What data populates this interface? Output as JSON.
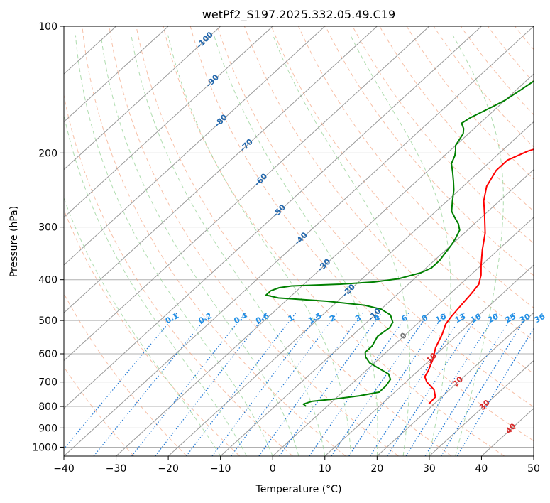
{
  "chart_data": {
    "type": "line",
    "title": "wetPf2_S197.2025.332.05.49.C19",
    "xlabel": "Temperature (°C)",
    "ylabel": "Pressure (hPa)",
    "xlim": [
      -40,
      50
    ],
    "ylim": [
      1050,
      100
    ],
    "x_ticks": [
      "−40",
      "−30",
      "−20",
      "−10",
      "0",
      "10",
      "20",
      "30",
      "40",
      "50"
    ],
    "x_tick_values": [
      -40,
      -30,
      -20,
      -10,
      0,
      10,
      20,
      30,
      40,
      50
    ],
    "y_ticks": [
      "100",
      "200",
      "300",
      "400",
      "500",
      "600",
      "700",
      "800",
      "900",
      "1000"
    ],
    "y_tick_values": [
      100,
      200,
      300,
      400,
      500,
      600,
      700,
      800,
      900,
      1000
    ],
    "isotherm_labels": [
      {
        "text": "-100",
        "T": -100,
        "p": 108
      },
      {
        "text": "-90",
        "T": -90,
        "p": 135
      },
      {
        "text": "-80",
        "T": -80,
        "p": 168
      },
      {
        "text": "-70",
        "T": -70,
        "p": 192
      },
      {
        "text": "-60",
        "T": -60,
        "p": 232
      },
      {
        "text": "-50",
        "T": -50,
        "p": 275
      },
      {
        "text": "-40",
        "T": -40,
        "p": 320
      },
      {
        "text": "-30",
        "T": -30,
        "p": 370
      },
      {
        "text": "-20",
        "T": -20,
        "p": 425
      },
      {
        "text": "-10",
        "T": -10,
        "p": 485
      },
      {
        "text": "0",
        "T": 0,
        "p": 545
      },
      {
        "text": "10",
        "T": 10,
        "p": 615
      },
      {
        "text": "20",
        "T": 20,
        "p": 700
      },
      {
        "text": "30",
        "T": 30,
        "p": 795
      },
      {
        "text": "40",
        "T": 40,
        "p": 905
      }
    ],
    "mixing_ratio_labels": [
      "0.1",
      "0.2",
      "0.4",
      "0.6",
      "1",
      "1.5",
      "2",
      "3",
      "4",
      "6",
      "8",
      "10",
      "13",
      "16",
      "20",
      "25",
      "30",
      "36"
    ],
    "mixing_ratio_values": [
      0.1,
      0.2,
      0.4,
      0.6,
      1,
      1.5,
      2,
      3,
      4,
      6,
      8,
      10,
      13,
      16,
      20,
      25,
      30,
      36
    ],
    "series": [
      {
        "name": "Temperature",
        "color": "#ff0000",
        "points": [
          [
            19,
            790
          ],
          [
            18.8,
            760
          ],
          [
            17,
            730
          ],
          [
            14,
            700
          ],
          [
            12.5,
            680
          ],
          [
            12,
            660
          ],
          [
            10.5,
            620
          ],
          [
            8.5,
            580
          ],
          [
            7,
            540
          ],
          [
            5.5,
            510
          ],
          [
            5,
            490
          ],
          [
            4.5,
            460
          ],
          [
            4,
            430
          ],
          [
            3.5,
            410
          ],
          [
            2,
            390
          ],
          [
            0,
            370
          ],
          [
            -3,
            340
          ],
          [
            -6,
            310
          ],
          [
            -10,
            280
          ],
          [
            -13,
            260
          ],
          [
            -15.5,
            240
          ],
          [
            -17,
            220
          ],
          [
            -17,
            208
          ],
          [
            -15,
            198
          ],
          [
            -12,
            190
          ],
          [
            -8.5,
            180
          ],
          [
            -7,
            175
          ],
          [
            -5,
            165
          ],
          [
            -3.5,
            155
          ],
          [
            -2,
            148
          ],
          [
            -1,
            140
          ],
          [
            -1,
            130
          ],
          [
            0,
            120
          ],
          [
            1,
            115
          ],
          [
            2.5,
            110
          ],
          [
            4,
            104
          ],
          [
            5,
            100
          ]
        ]
      },
      {
        "name": "Dewpoint",
        "color": "#008000",
        "points": [
          [
            -4,
            800
          ],
          [
            -5,
            790
          ],
          [
            -4,
            778
          ],
          [
            0,
            768
          ],
          [
            4,
            755
          ],
          [
            7,
            740
          ],
          [
            7,
            715
          ],
          [
            6.5,
            690
          ],
          [
            5,
            670
          ],
          [
            2,
            650
          ],
          [
            -1,
            630
          ],
          [
            -3,
            610
          ],
          [
            -4,
            595
          ],
          [
            -4,
            575
          ],
          [
            -5,
            545
          ],
          [
            -4.5,
            520
          ],
          [
            -5,
            505
          ],
          [
            -7,
            485
          ],
          [
            -10,
            470
          ],
          [
            -14,
            460
          ],
          [
            -22,
            450
          ],
          [
            -32,
            442
          ],
          [
            -35,
            435
          ],
          [
            -35,
            425
          ],
          [
            -34,
            418
          ],
          [
            -32,
            414
          ],
          [
            -23,
            410
          ],
          [
            -17,
            405
          ],
          [
            -13,
            398
          ],
          [
            -10,
            385
          ],
          [
            -9,
            375
          ],
          [
            -9,
            360
          ],
          [
            -9.5,
            345
          ],
          [
            -10,
            330
          ],
          [
            -10.5,
            320
          ],
          [
            -11.5,
            305
          ],
          [
            -13,
            295
          ],
          [
            -15,
            285
          ],
          [
            -17,
            275
          ],
          [
            -19,
            260
          ],
          [
            -21,
            245
          ],
          [
            -23,
            233
          ],
          [
            -25,
            222
          ],
          [
            -27,
            212
          ],
          [
            -28,
            203
          ],
          [
            -29,
            197
          ],
          [
            -30,
            192
          ],
          [
            -30.5,
            186
          ],
          [
            -31,
            180
          ],
          [
            -32,
            175
          ],
          [
            -33.5,
            170
          ],
          [
            -33,
            165
          ],
          [
            -32,
            160
          ],
          [
            -31,
            155
          ],
          [
            -30,
            150
          ],
          [
            -29.5,
            145
          ],
          [
            -29,
            140
          ],
          [
            -28.5,
            135
          ],
          [
            -28,
            130
          ],
          [
            -27.5,
            125
          ],
          [
            -27,
            120
          ],
          [
            -27,
            115
          ],
          [
            -27.5,
            110
          ],
          [
            -28,
            105
          ],
          [
            -28.5,
            100
          ]
        ]
      }
    ]
  }
}
